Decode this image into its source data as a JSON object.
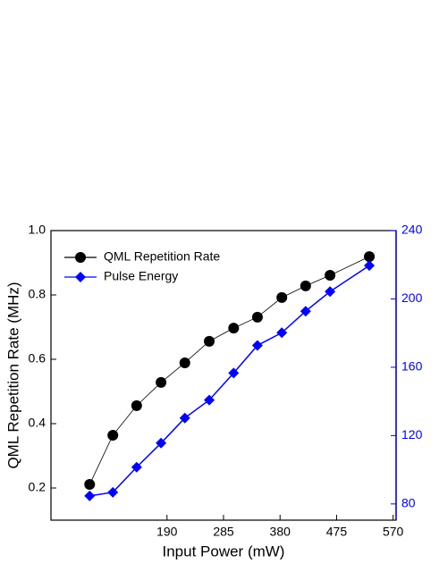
{
  "chart_data": {
    "type": "line",
    "xlabel": "Input Power (mW)",
    "ylabel": "QML Repetition Rate (MHz)",
    "x": [
      60,
      99,
      139,
      180,
      220,
      261,
      302,
      342,
      383,
      423,
      464,
      530
    ],
    "series": [
      {
        "name": "QML Repetition Rate",
        "color": "#000000",
        "marker": "circle",
        "values": [
          0.211,
          0.364,
          0.456,
          0.528,
          0.589,
          0.656,
          0.697,
          0.731,
          0.792,
          0.828,
          0.861,
          0.919
        ]
      },
      {
        "name": "Pulse Energy",
        "color": "#0000ff",
        "marker": "diamond",
        "axis": "y2",
        "values": [
          84.7,
          86.8,
          101.5,
          115.6,
          130.3,
          140.8,
          156.6,
          172.8,
          180.2,
          192.8,
          204.3,
          219.5
        ]
      }
    ],
    "xlim": [
      -5,
      575
    ],
    "xticks": [
      190,
      285,
      380,
      475,
      570
    ],
    "ylim": [
      0.1,
      1.0
    ],
    "yticks": [
      0.2,
      0.4,
      0.6,
      0.8,
      {
        "value": 1.0,
        "label": "1.0"
      }
    ],
    "y2lim": [
      70.5,
      240
    ],
    "y2ticks": [
      80,
      120,
      160,
      200,
      240
    ],
    "y2color": "#0000ff",
    "legend": "upper left"
  }
}
